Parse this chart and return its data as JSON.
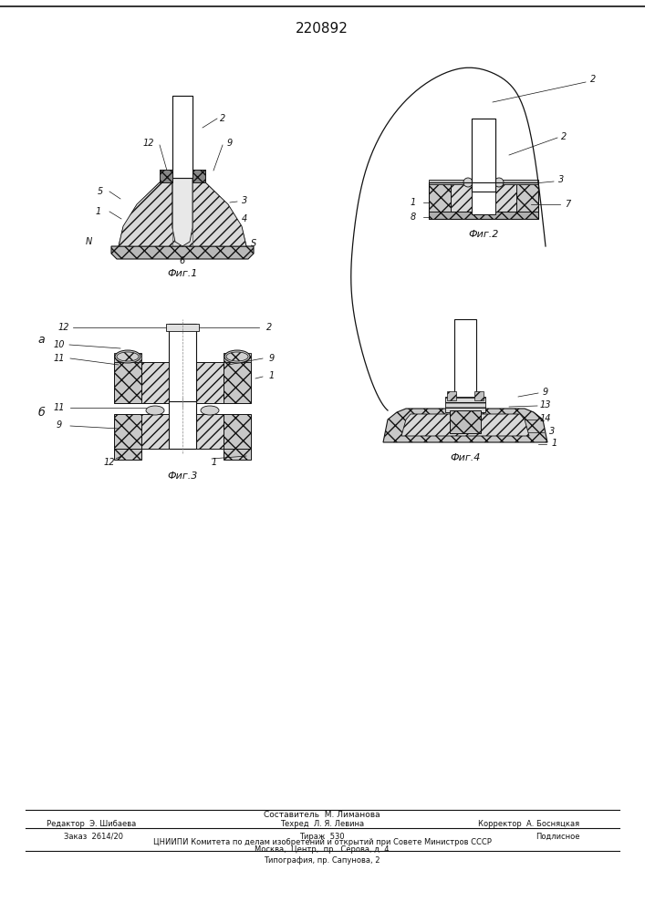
{
  "title_number": "220892",
  "background_color": "#ffffff",
  "fig1_caption": "Фиг.1",
  "fig2_caption": "Фиг.2",
  "fig3_caption": "Фиг.3",
  "fig4_caption": "Фиг.4",
  "fig3a_label": "а",
  "fig3b_label": "б",
  "footer_line1": "Составитель  М. Лиманова",
  "footer_col1": "Редактор  Э. Шибаева",
  "footer_col2": "Техред  Л. Я. Левина",
  "footer_col3": "Корректор  А. Босняцкая",
  "footer_row1": "Заказ  2614/20",
  "footer_row1m": "Тираж  530",
  "footer_row1r": "Подлисное",
  "footer_row2": "ЦНИИПИ Комитета по делам изобретений и открытий при Совете Министров СССР",
  "footer_row3": "Москва,  Центр,  пр.  Серова, д. 4",
  "footer_row4": "Типография, пр. Сапунова, 2",
  "lc": "#111111",
  "fc_cross": "#d0d0d0",
  "fc_diag": "#e0e0e0",
  "fc_white": "#ffffff",
  "fc_dark": "#555555"
}
